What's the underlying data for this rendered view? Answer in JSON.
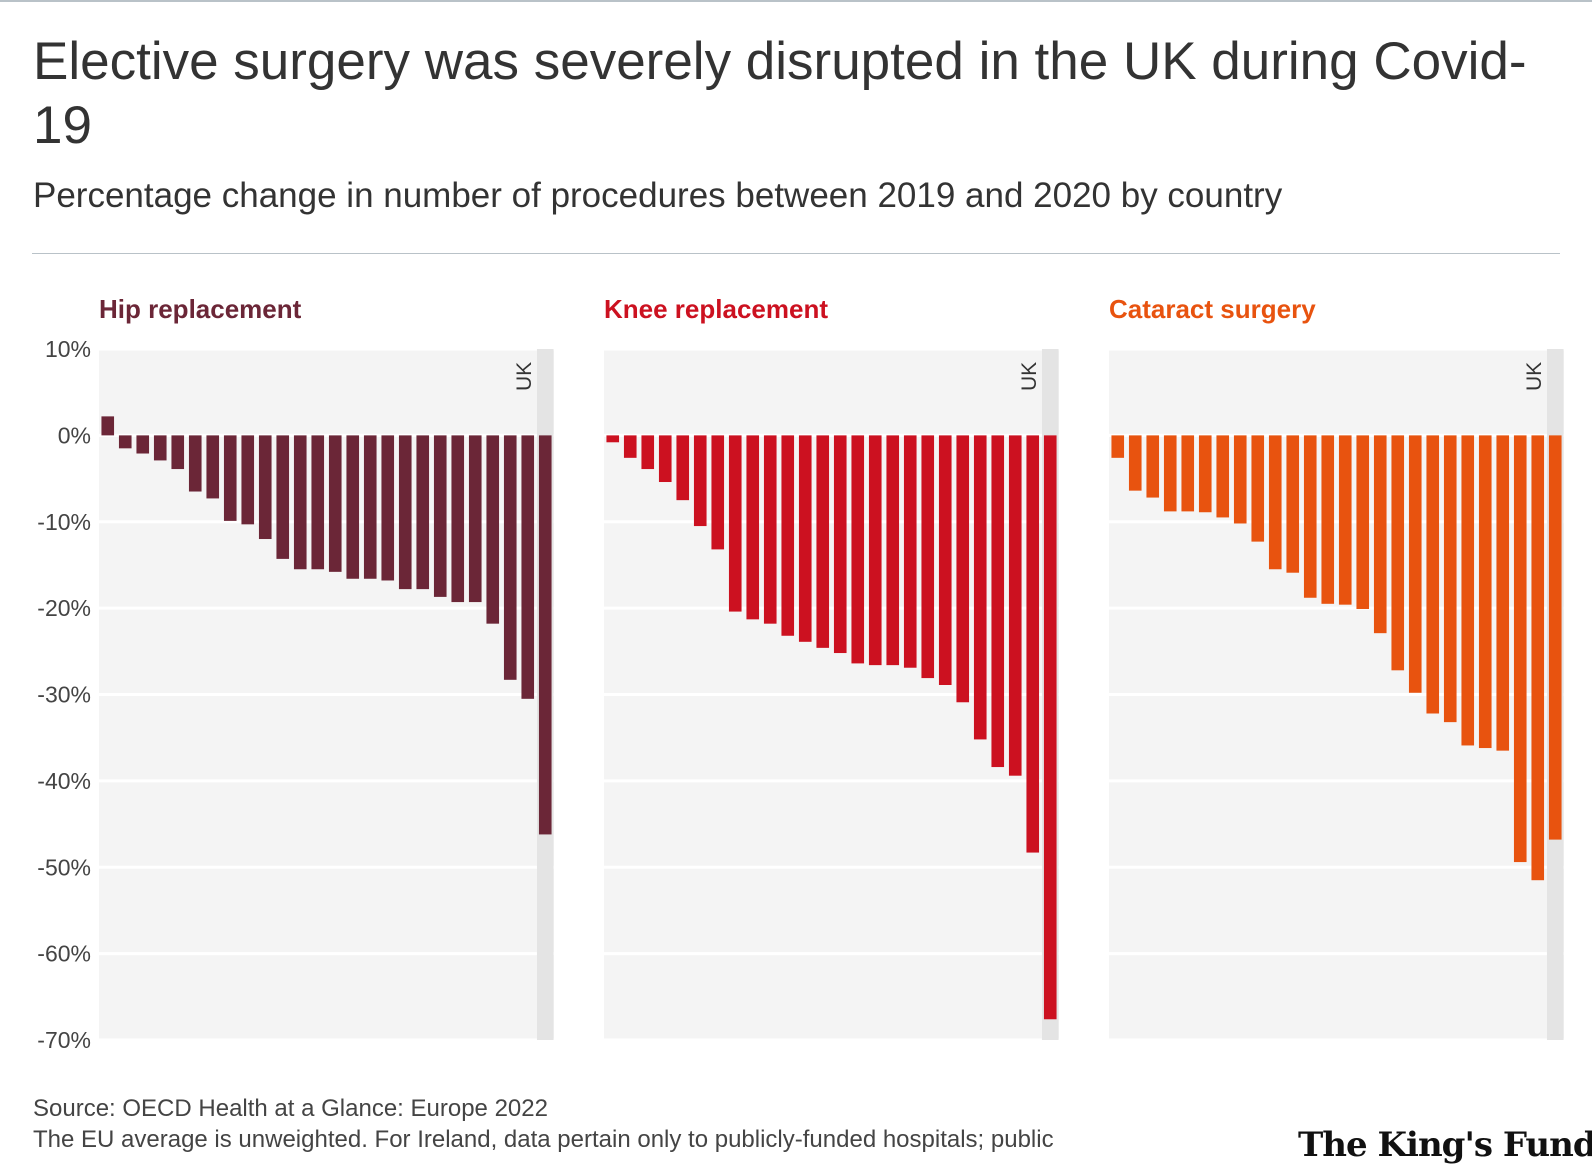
{
  "title": "Elective surgery was severely disrupted in the UK during Covid-19",
  "subtitle": "Percentage change in number of procedures between 2019 and 2020 by country",
  "source": "Source: OECD Health at a Glance: Europe 2022",
  "note": "The EU average is unweighted. For Ireland, data pertain only to publicly-funded hospitals; public",
  "logo": "The King's Fund",
  "colors": {
    "hip": "#6b2637",
    "knee": "#cc1120",
    "cataract": "#e8530f",
    "panel_bg": "#f4f4f4",
    "highlight": "#e4e4e4"
  },
  "chart_data": [
    {
      "type": "bar",
      "title": "Hip replacement",
      "color": "#6b2637",
      "ylim": [
        -70,
        10
      ],
      "yticks": [
        "10%",
        "0%",
        "-10%",
        "-20%",
        "-30%",
        "-40%",
        "-50%",
        "-60%",
        "-70%"
      ],
      "highlight_label": "UK",
      "values": [
        2.2,
        -1.5,
        -2.1,
        -2.9,
        -3.9,
        -6.5,
        -7.3,
        -9.9,
        -10.3,
        -12,
        -14.3,
        -15.5,
        -15.5,
        -15.8,
        -16.6,
        -16.6,
        -16.8,
        -17.8,
        -17.8,
        -18.7,
        -19.3,
        -19.3,
        -21.8,
        -28.3,
        -30.5,
        -46.2
      ],
      "highlight_index": 25
    },
    {
      "type": "bar",
      "title": "Knee replacement",
      "color": "#cc1120",
      "ylim": [
        -70,
        10
      ],
      "yticks": [],
      "highlight_label": "UK",
      "values": [
        -0.8,
        -2.6,
        -3.9,
        -5.4,
        -7.5,
        -10.5,
        -13.2,
        -20.4,
        -21.3,
        -21.8,
        -23.2,
        -23.9,
        -24.6,
        -25.2,
        -26.4,
        -26.6,
        -26.6,
        -26.9,
        -28.1,
        -28.9,
        -30.9,
        -35.2,
        -38.4,
        -39.4,
        -48.3,
        -67.6
      ],
      "highlight_index": 25
    },
    {
      "type": "bar",
      "title": "Cataract surgery",
      "color": "#e8530f",
      "ylim": [
        -70,
        10
      ],
      "yticks": [],
      "highlight_label": "UK",
      "values": [
        -2.6,
        -6.4,
        -7.2,
        -8.8,
        -8.8,
        -8.9,
        -9.5,
        -10.2,
        -12.3,
        -15.5,
        -15.9,
        -18.8,
        -19.5,
        -19.6,
        -20.1,
        -22.9,
        -27.2,
        -29.8,
        -32.2,
        -33.2,
        -35.9,
        -36.2,
        -36.5,
        -49.4,
        -51.5,
        -46.8
      ],
      "highlight_index": 25
    }
  ]
}
